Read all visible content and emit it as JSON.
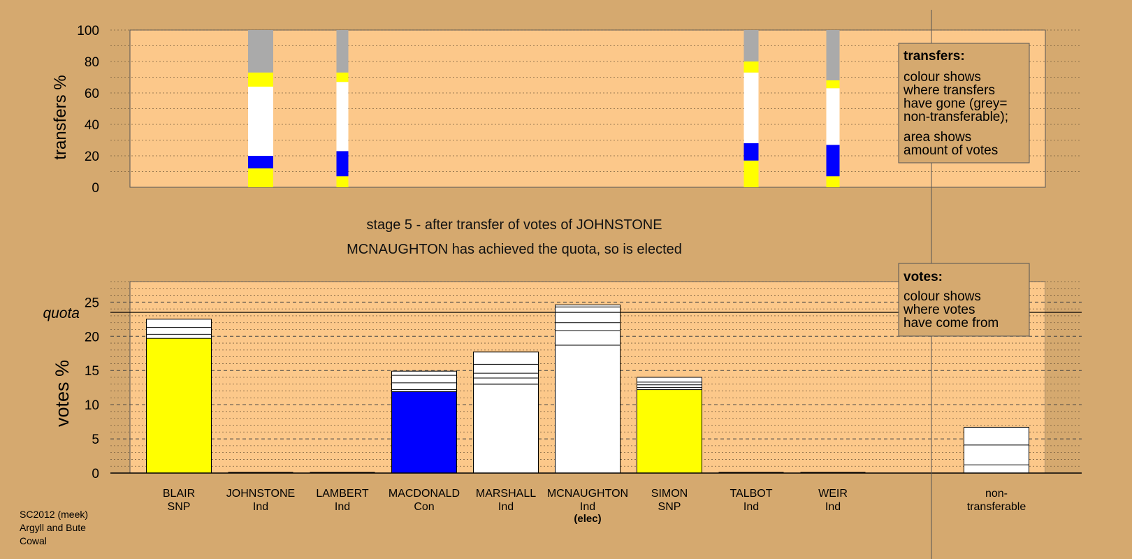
{
  "colors": {
    "background": "#d5a96f",
    "plot_background": "#fcc88a",
    "snp": "#ffff00",
    "con": "#0000ff",
    "ind": "#ffffff",
    "nontransferable": "#aaaaaa"
  },
  "info_text": {
    "stage": "stage 5 - after transfer of votes of JOHNSTONE",
    "status": "MCNAUGHTON has achieved the quota, so is elected"
  },
  "footer": {
    "line1": "SC2012 (meek)",
    "line2": "Argyll and Bute",
    "line3": "Cowal"
  },
  "legend_transfers": {
    "title": "transfers:",
    "lines": [
      "colour shows",
      "where transfers",
      "have gone (grey=",
      "non-transferable);"
    ],
    "lines2": [
      "area shows",
      "amount of votes"
    ]
  },
  "legend_votes": {
    "title": "votes:",
    "lines": [
      "colour shows",
      "where votes",
      "have come from"
    ]
  },
  "chart_data": [
    {
      "type": "bar",
      "title": "",
      "ylabel": "transfers %",
      "ylim": [
        0,
        100
      ],
      "yticks": [
        0,
        20,
        40,
        60,
        80,
        100
      ],
      "grid": true,
      "stacks": [
        {
          "candidate": "JOHNSTONE",
          "segments": [
            {
              "from": 0,
              "to": 12,
              "color": "snp"
            },
            {
              "from": 12,
              "to": 20,
              "color": "con"
            },
            {
              "from": 20,
              "to": 64,
              "color": "ind"
            },
            {
              "from": 64,
              "to": 73,
              "color": "snp"
            },
            {
              "from": 73,
              "to": 100,
              "color": "nontransferable"
            }
          ]
        },
        {
          "candidate": "LAMBERT",
          "segments": [
            {
              "from": 0,
              "to": 7,
              "color": "snp"
            },
            {
              "from": 7,
              "to": 23,
              "color": "con"
            },
            {
              "from": 23,
              "to": 67,
              "color": "ind"
            },
            {
              "from": 67,
              "to": 73,
              "color": "snp"
            },
            {
              "from": 73,
              "to": 100,
              "color": "nontransferable"
            }
          ]
        },
        {
          "candidate": "TALBOT",
          "segments": [
            {
              "from": 0,
              "to": 17,
              "color": "snp"
            },
            {
              "from": 17,
              "to": 28,
              "color": "con"
            },
            {
              "from": 28,
              "to": 73,
              "color": "ind"
            },
            {
              "from": 73,
              "to": 80,
              "color": "snp"
            },
            {
              "from": 80,
              "to": 100,
              "color": "nontransferable"
            }
          ]
        },
        {
          "candidate": "WEIR",
          "segments": [
            {
              "from": 0,
              "to": 7,
              "color": "snp"
            },
            {
              "from": 7,
              "to": 27,
              "color": "con"
            },
            {
              "from": 27,
              "to": 63,
              "color": "ind"
            },
            {
              "from": 63,
              "to": 68,
              "color": "snp"
            },
            {
              "from": 68,
              "to": 100,
              "color": "nontransferable"
            }
          ]
        }
      ]
    },
    {
      "type": "bar",
      "title": "",
      "ylabel": "votes %",
      "ylim": [
        0,
        28
      ],
      "yticks": [
        0,
        5,
        10,
        15,
        20,
        25
      ],
      "quota_label": "quota",
      "quota": 23.5,
      "grid": true,
      "categories": [
        {
          "name": "BLAIR",
          "party": "SNP",
          "note": "",
          "total": 22.5,
          "base": 19.7,
          "base_color": "snp",
          "lines": [
            20.3,
            21.3
          ]
        },
        {
          "name": "JOHNSTONE",
          "party": "Ind",
          "note": "",
          "total": 0,
          "base": 0,
          "base_color": "ind",
          "lines": []
        },
        {
          "name": "LAMBERT",
          "party": "Ind",
          "note": "",
          "total": 0,
          "base": 0,
          "base_color": "ind",
          "lines": []
        },
        {
          "name": "MACDONALD",
          "party": "Con",
          "note": "",
          "total": 14.9,
          "base": 11.9,
          "base_color": "con",
          "lines": [
            12.2,
            13.2,
            14.3
          ]
        },
        {
          "name": "MARSHALL",
          "party": "Ind",
          "note": "",
          "total": 17.7,
          "base": 13.0,
          "base_color": "ind",
          "lines": [
            13.0,
            13.9,
            14.6,
            15.9
          ]
        },
        {
          "name": "MCNAUGHTON",
          "party": "Ind",
          "note": "(elec)",
          "total": 24.6,
          "base": 18.7,
          "base_color": "ind",
          "lines": [
            18.7,
            20.8,
            22.0,
            24.3
          ]
        },
        {
          "name": "SIMON",
          "party": "SNP",
          "note": "",
          "total": 14.0,
          "base": 12.2,
          "base_color": "snp",
          "lines": [
            12.5,
            12.9,
            13.3
          ]
        },
        {
          "name": "TALBOT",
          "party": "Ind",
          "note": "",
          "total": 0,
          "base": 0,
          "base_color": "ind",
          "lines": []
        },
        {
          "name": "WEIR",
          "party": "Ind",
          "note": "",
          "total": 0,
          "base": 0,
          "base_color": "ind",
          "lines": []
        }
      ],
      "nontransferable": {
        "label1": "non-",
        "label2": "transferable",
        "total": 6.7,
        "lines": [
          1.2,
          4.1
        ]
      }
    }
  ]
}
